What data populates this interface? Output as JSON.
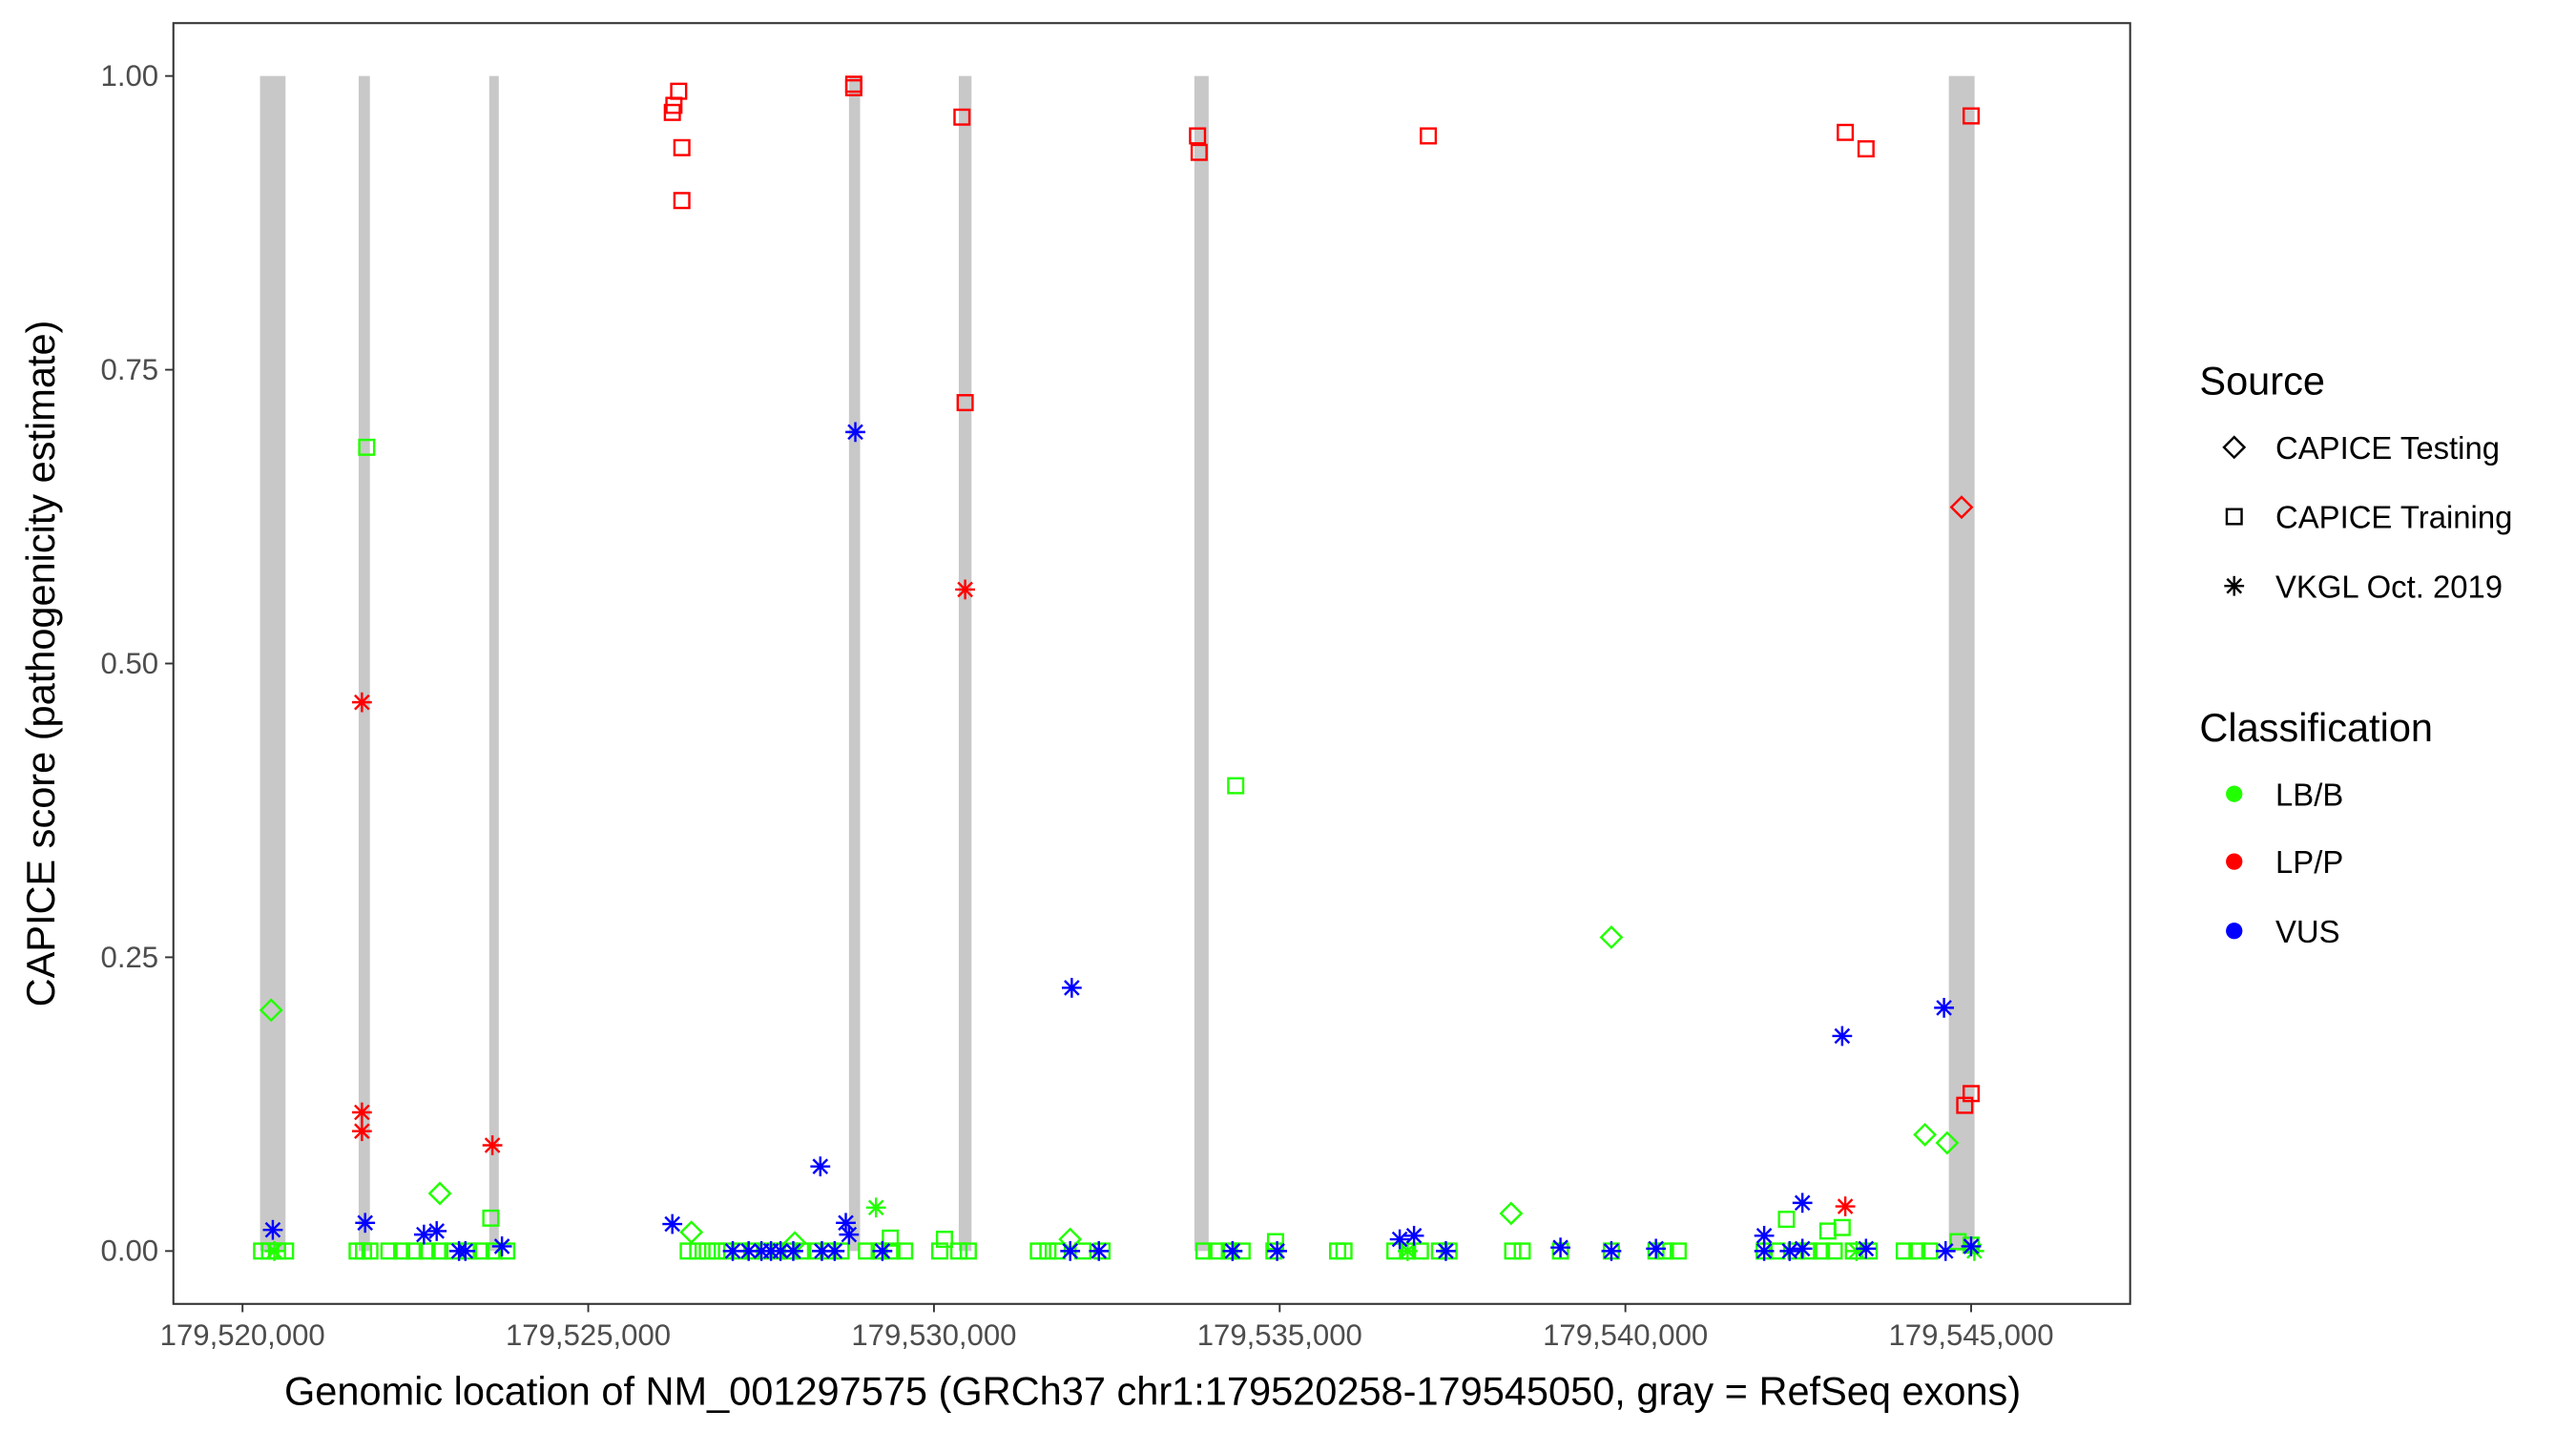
{
  "chart_data": {
    "type": "scatter",
    "xlabel": "Genomic location of NM_001297575 (GRCh37 chr1:179520258-179545050, gray = RefSeq exons)",
    "ylabel": "CAPICE score (pathogenicity estimate)",
    "xlim": [
      179519000,
      179547300
    ],
    "ylim": [
      -0.045,
      1.045
    ],
    "x_ticks": [
      179520000,
      179525000,
      179530000,
      179535000,
      179540000,
      179545000
    ],
    "x_tick_labels": [
      "179,520,000",
      "179,525,000",
      "179,530,000",
      "179,535,000",
      "179,540,000",
      "179,545,000"
    ],
    "y_ticks": [
      0,
      0.25,
      0.5,
      0.75,
      1.0
    ],
    "y_tick_labels": [
      "0.00",
      "0.25",
      "0.50",
      "0.75",
      "1.00"
    ],
    "grid": false,
    "exons": [
      [
        179520253,
        179520622
      ],
      [
        179521680,
        179521842
      ],
      [
        179523568,
        179523706
      ],
      [
        179528771,
        179528932
      ],
      [
        179530359,
        179530543
      ],
      [
        179533766,
        179533973
      ],
      [
        179544678,
        179545050
      ]
    ],
    "exon_color": "#c8c8c8",
    "legend_position": "right",
    "legend": {
      "source_title": "Source",
      "sources": [
        {
          "label": "CAPICE Testing",
          "shape": "diamond"
        },
        {
          "label": "CAPICE Training",
          "shape": "square"
        },
        {
          "label": "VKGL Oct. 2019",
          "shape": "asterisk"
        }
      ],
      "classification_title": "Classification",
      "classifications": [
        {
          "label": "LB/B",
          "color": "#22ff00"
        },
        {
          "label": "LP/P",
          "color": "#ff0000"
        },
        {
          "label": "VUS",
          "color": "#0000ff"
        }
      ]
    },
    "series": [
      {
        "source": "CAPICE Training",
        "classification": "LP/P",
        "points": [
          [
            179526216,
            0.969
          ],
          [
            179526239,
            0.975
          ],
          [
            179526308,
            0.987
          ],
          [
            179526354,
            0.939
          ],
          [
            179526354,
            0.894
          ],
          [
            179528840,
            0.993
          ],
          [
            179528840,
            0.99
          ],
          [
            179530405,
            0.965
          ],
          [
            179530451,
            0.722
          ],
          [
            179533812,
            0.949
          ],
          [
            179533835,
            0.935
          ],
          [
            179537150,
            0.949
          ],
          [
            179543180,
            0.952
          ],
          [
            179543480,
            0.938
          ],
          [
            179545000,
            0.966
          ],
          [
            179544908,
            0.124
          ],
          [
            179545000,
            0.134
          ]
        ]
      },
      {
        "source": "CAPICE Testing",
        "classification": "LP/P",
        "points": [
          [
            179544862,
            0.633
          ]
        ]
      },
      {
        "source": "VKGL Oct. 2019",
        "classification": "LP/P",
        "points": [
          [
            179521727,
            0.467
          ],
          [
            179521727,
            0.118
          ],
          [
            179521727,
            0.102
          ],
          [
            179523614,
            0.09
          ],
          [
            179530451,
            0.563
          ],
          [
            179543180,
            0.038
          ]
        ]
      },
      {
        "source": "CAPICE Testing",
        "classification": "LB/B",
        "points": [
          [
            179520414,
            0.205
          ],
          [
            179522854,
            0.049
          ],
          [
            179539797,
            0.267
          ],
          [
            179544332,
            0.099
          ],
          [
            179544654,
            0.092
          ],
          [
            179538347,
            0.032
          ],
          [
            179526492,
            0.016
          ],
          [
            179527988,
            0.007
          ],
          [
            179531970,
            0.01
          ]
        ]
      },
      {
        "source": "CAPICE Training",
        "classification": "LB/B",
        "points": [
          [
            179521796,
            0.684
          ],
          [
            179534364,
            0.396
          ],
          [
            179523591,
            0.028
          ],
          [
            179542329,
            0.027
          ],
          [
            179542928,
            0.017
          ],
          [
            179543135,
            0.02
          ],
          [
            179530152,
            0.01
          ],
          [
            179529369,
            0.011
          ],
          [
            179534940,
            0.008
          ],
          [
            179520276,
            0
          ],
          [
            179520391,
            0
          ],
          [
            179520506,
            0
          ],
          [
            179520622,
            0
          ],
          [
            179521657,
            0
          ],
          [
            179521750,
            0
          ],
          [
            179521842,
            0
          ],
          [
            179522118,
            0
          ],
          [
            179522302,
            0
          ],
          [
            179522486,
            0
          ],
          [
            179522670,
            0
          ],
          [
            179522854,
            0
          ],
          [
            179523039,
            0
          ],
          [
            179523269,
            0
          ],
          [
            179523453,
            0
          ],
          [
            179523637,
            0
          ],
          [
            179523821,
            0
          ],
          [
            179526446,
            0
          ],
          [
            179526584,
            0
          ],
          [
            179526722,
            0
          ],
          [
            179526860,
            0
          ],
          [
            179526998,
            0
          ],
          [
            179527182,
            0
          ],
          [
            179527366,
            0
          ],
          [
            179527551,
            0
          ],
          [
            179527735,
            0
          ],
          [
            179527919,
            0
          ],
          [
            179528103,
            0
          ],
          [
            179528287,
            0
          ],
          [
            179528471,
            0
          ],
          [
            179528656,
            0
          ],
          [
            179529024,
            0
          ],
          [
            179529208,
            0
          ],
          [
            179529392,
            0
          ],
          [
            179529576,
            0
          ],
          [
            179530083,
            0
          ],
          [
            179530359,
            0
          ],
          [
            179530497,
            0
          ],
          [
            179531510,
            0
          ],
          [
            179531648,
            0
          ],
          [
            179531786,
            0
          ],
          [
            179532154,
            0
          ],
          [
            179532431,
            0
          ],
          [
            179533904,
            0
          ],
          [
            179534088,
            0
          ],
          [
            179534272,
            0
          ],
          [
            179534457,
            0
          ],
          [
            179534917,
            0
          ],
          [
            179535838,
            0
          ],
          [
            179535930,
            0
          ],
          [
            179536666,
            0
          ],
          [
            179536850,
            0
          ],
          [
            179537035,
            0
          ],
          [
            179537311,
            0
          ],
          [
            179537449,
            0
          ],
          [
            179538370,
            0
          ],
          [
            179538508,
            0
          ],
          [
            179539061,
            0
          ],
          [
            179539797,
            0
          ],
          [
            179540442,
            0
          ],
          [
            179540580,
            0
          ],
          [
            179540764,
            0
          ],
          [
            179542007,
            0
          ],
          [
            179542191,
            0
          ],
          [
            179542467,
            0
          ],
          [
            179542652,
            0
          ],
          [
            179542836,
            0
          ],
          [
            179543020,
            0
          ],
          [
            179543296,
            0
          ],
          [
            179543526,
            0
          ],
          [
            179544033,
            0
          ],
          [
            179544217,
            0
          ],
          [
            179544401,
            0
          ],
          [
            179544811,
            0.008
          ],
          [
            179545000,
            0.005
          ]
        ]
      },
      {
        "source": "VKGL Oct. 2019",
        "classification": "LB/B",
        "points": [
          [
            179529162,
            0.037
          ],
          [
            179520460,
            0
          ],
          [
            179534318,
            0
          ],
          [
            179543342,
            0
          ],
          [
            179545046,
            0
          ],
          [
            179536850,
            0
          ]
        ]
      },
      {
        "source": "VKGL Oct. 2019",
        "classification": "VUS",
        "points": [
          [
            179520438,
            0.018
          ],
          [
            179521773,
            0.024
          ],
          [
            179522624,
            0.014
          ],
          [
            179522808,
            0.017
          ],
          [
            179523131,
            0
          ],
          [
            179523223,
            0
          ],
          [
            179523752,
            0.004
          ],
          [
            179526216,
            0.023
          ],
          [
            179528356,
            0.072
          ],
          [
            179528863,
            0.697
          ],
          [
            179528725,
            0.024
          ],
          [
            179528771,
            0.014
          ],
          [
            179531993,
            0.224
          ],
          [
            179543135,
            0.183
          ],
          [
            179544608,
            0.207
          ],
          [
            179542560,
            0.041
          ],
          [
            179542007,
            0.013
          ],
          [
            179536736,
            0.01
          ],
          [
            179536943,
            0.013
          ],
          [
            179527090,
            0
          ],
          [
            179527320,
            0
          ],
          [
            179527505,
            0
          ],
          [
            179527643,
            0
          ],
          [
            179527781,
            0
          ],
          [
            179527965,
            0
          ],
          [
            179528379,
            0
          ],
          [
            179528564,
            0
          ],
          [
            179529254,
            0
          ],
          [
            179531970,
            0
          ],
          [
            179532385,
            0
          ],
          [
            179534318,
            0
          ],
          [
            179534963,
            0
          ],
          [
            179537403,
            0
          ],
          [
            179539061,
            0.003
          ],
          [
            179539797,
            0
          ],
          [
            179540442,
            0.002
          ],
          [
            179542007,
            0
          ],
          [
            179542375,
            0
          ],
          [
            179542560,
            0.002
          ],
          [
            179543480,
            0.002
          ],
          [
            179544631,
            0
          ],
          [
            179545000,
            0.004
          ]
        ]
      }
    ]
  }
}
